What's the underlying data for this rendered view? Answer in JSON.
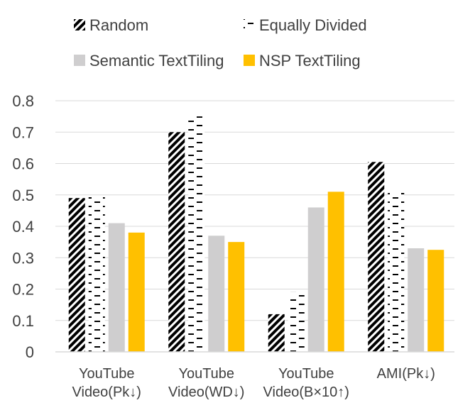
{
  "chart_data": {
    "type": "bar",
    "categories": [
      [
        "YouTube",
        "Video(Pk↓)"
      ],
      [
        "YouTube",
        "Video(WD↓)"
      ],
      [
        "YouTube",
        "Video(B×10↑)"
      ],
      [
        "AMI(Pk↓)"
      ]
    ],
    "series": [
      {
        "name": "Random",
        "values": [
          0.49,
          0.7,
          0.12,
          0.605
        ],
        "pattern": "diagonal-hatch",
        "color": "#000000"
      },
      {
        "name": "Equally Divided",
        "values": [
          0.495,
          0.75,
          0.19,
          0.51
        ],
        "pattern": "dashes",
        "color": "#000000"
      },
      {
        "name": "Semantic TextTiling",
        "values": [
          0.41,
          0.37,
          0.46,
          0.33
        ],
        "pattern": "solid",
        "color": "#cfcecf"
      },
      {
        "name": "NSP TextTiling",
        "values": [
          0.38,
          0.35,
          0.51,
          0.325
        ],
        "pattern": "solid",
        "color": "#ffc000"
      }
    ],
    "yticks": [
      "0",
      "0.1",
      "0.2",
      "0.3",
      "0.4",
      "0.5",
      "0.6",
      "0.7",
      "0.8"
    ],
    "ylim": [
      0,
      0.8
    ],
    "grid": true,
    "legend_position": "top"
  }
}
